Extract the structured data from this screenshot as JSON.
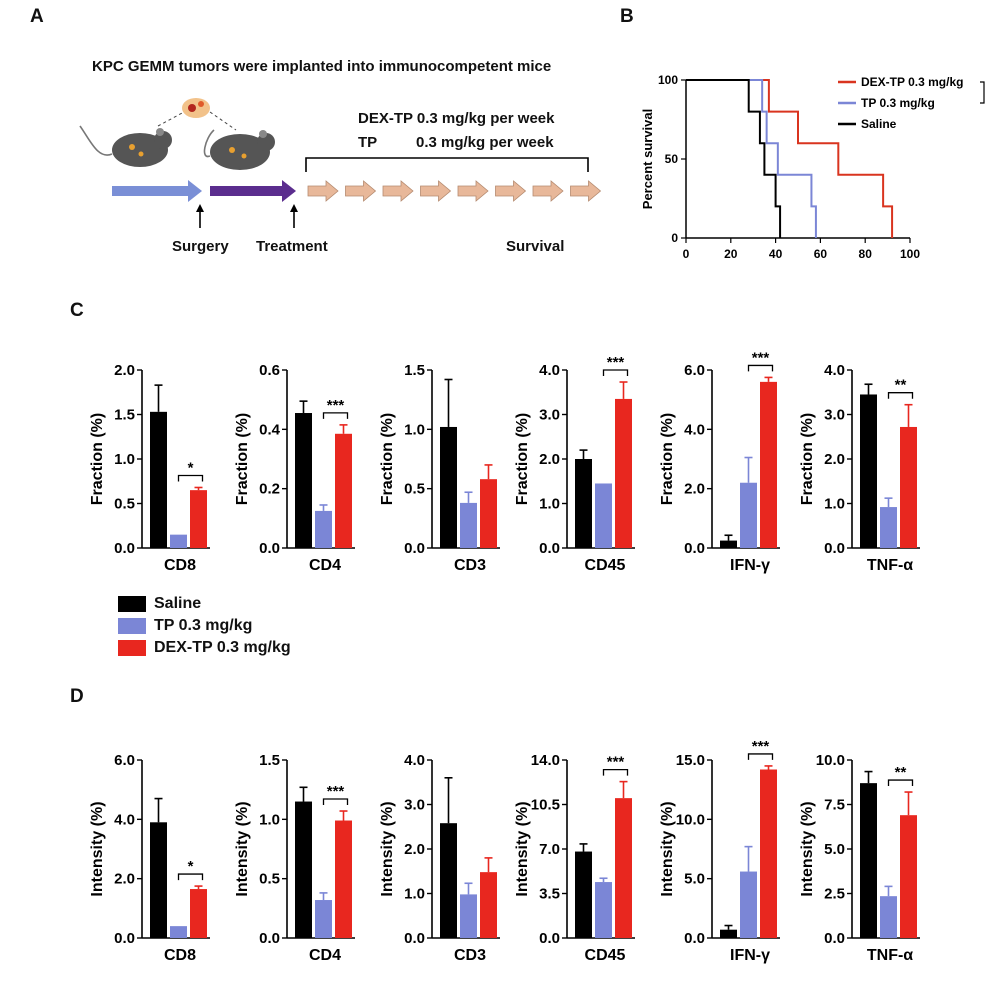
{
  "panels": {
    "a": "A",
    "b": "B",
    "c": "C",
    "d": "D"
  },
  "schematic": {
    "title": "KPC GEMM tumors were implanted into immunocompetent mice",
    "dex_line": "DEX-TP 0.3 mg/kg per week",
    "tp_name": "TP",
    "tp_dose": "0.3 mg/kg per week",
    "surgery": "Surgery",
    "treatment": "Treatment",
    "survival": "Survival"
  },
  "colors": {
    "saline": "#000000",
    "tp": "#7b86d6",
    "dex": "#e8271f",
    "arrow_blue": "#7a8fd6",
    "arrow_purple": "#5b2d8e",
    "arrow_tan": "#e8b89a"
  },
  "legend": {
    "saline": "Saline",
    "tp": "TP 0.3 mg/kg",
    "dex": "DEX-TP 0.3 mg/kg"
  },
  "chart_data": [
    {
      "id": "survival",
      "type": "line",
      "step": true,
      "ylabel": "Percent survival",
      "xlim": [
        0,
        100
      ],
      "ylim": [
        0,
        100
      ],
      "xticks": [
        "0",
        "20",
        "40",
        "60",
        "80",
        "100"
      ],
      "yticks": [
        "0",
        "50",
        "100"
      ],
      "legend_position": "top-right",
      "series": [
        {
          "name": "DEX-TP 0.3 mg/kg",
          "color": "#d9341f",
          "points": [
            [
              0,
              100
            ],
            [
              37,
              100
            ],
            [
              37,
              80
            ],
            [
              50,
              80
            ],
            [
              50,
              60
            ],
            [
              60,
              60
            ],
            [
              60,
              60
            ],
            [
              68,
              60
            ],
            [
              68,
              40
            ],
            [
              80,
              40
            ],
            [
              80,
              40
            ],
            [
              88,
              40
            ],
            [
              88,
              20
            ],
            [
              92,
              20
            ],
            [
              92,
              0
            ]
          ]
        },
        {
          "name": "TP 0.3 mg/kg",
          "color": "#7b86d6",
          "points": [
            [
              0,
              100
            ],
            [
              34,
              100
            ],
            [
              34,
              80
            ],
            [
              36,
              80
            ],
            [
              36,
              60
            ],
            [
              41,
              60
            ],
            [
              41,
              40
            ],
            [
              52,
              40
            ],
            [
              52,
              40
            ],
            [
              56,
              40
            ],
            [
              56,
              20
            ],
            [
              58,
              20
            ],
            [
              58,
              0
            ]
          ]
        },
        {
          "name": "Saline",
          "color": "#000000",
          "points": [
            [
              0,
              100
            ],
            [
              28,
              100
            ],
            [
              28,
              80
            ],
            [
              33,
              80
            ],
            [
              33,
              60
            ],
            [
              35,
              60
            ],
            [
              35,
              40
            ],
            [
              40,
              40
            ],
            [
              40,
              20
            ],
            [
              42,
              20
            ],
            [
              42,
              0
            ]
          ]
        }
      ]
    },
    {
      "id": "c-cd8",
      "type": "bar",
      "ylabel": "Fraction (%)",
      "category": "CD8",
      "ylim": [
        0,
        2.0
      ],
      "yticks": [
        "0.0",
        "0.5",
        "1.0",
        "1.5",
        "2.0"
      ],
      "values": [
        1.53,
        0.15,
        0.65
      ],
      "errors": [
        0.3,
        0,
        0.03
      ],
      "sig": "*"
    },
    {
      "id": "c-cd4",
      "type": "bar",
      "ylabel": "Fraction (%)",
      "category": "CD4",
      "ylim": [
        0,
        0.6
      ],
      "yticks": [
        "0.0",
        "0.2",
        "0.4",
        "0.6"
      ],
      "values": [
        0.455,
        0.125,
        0.385
      ],
      "errors": [
        0.04,
        0.02,
        0.03
      ],
      "sig": "***"
    },
    {
      "id": "c-cd3",
      "type": "bar",
      "ylabel": "Fraction (%)",
      "category": "CD3",
      "ylim": [
        0,
        1.5
      ],
      "yticks": [
        "0.0",
        "0.5",
        "1.0",
        "1.5"
      ],
      "values": [
        1.02,
        0.38,
        0.58
      ],
      "errors": [
        0.4,
        0.09,
        0.12
      ],
      "sig": ""
    },
    {
      "id": "c-cd45",
      "type": "bar",
      "ylabel": "Fraction (%)",
      "category": "CD45",
      "ylim": [
        0,
        4.0
      ],
      "yticks": [
        "0.0",
        "1.0",
        "2.0",
        "3.0",
        "4.0"
      ],
      "values": [
        2.0,
        1.45,
        3.35
      ],
      "errors": [
        0.2,
        0,
        0.38
      ],
      "sig": "***"
    },
    {
      "id": "c-ifn",
      "type": "bar",
      "ylabel": "Fraction (%)",
      "category": "IFN-γ",
      "ylim": [
        0,
        6.0
      ],
      "yticks": [
        "0.0",
        "2.0",
        "4.0",
        "6.0"
      ],
      "values": [
        0.25,
        2.2,
        5.6
      ],
      "errors": [
        0.18,
        0.85,
        0.15
      ],
      "sig": "***"
    },
    {
      "id": "c-tnf",
      "type": "bar",
      "ylabel": "Fraction (%)",
      "category": "TNF-α",
      "ylim": [
        0,
        4.0
      ],
      "yticks": [
        "0.0",
        "1.0",
        "2.0",
        "3.0",
        "4.0"
      ],
      "values": [
        3.45,
        0.92,
        2.72
      ],
      "errors": [
        0.23,
        0.2,
        0.5
      ],
      "sig": "**"
    },
    {
      "id": "d-cd8",
      "type": "bar",
      "ylabel": "Intensity (%)",
      "category": "CD8",
      "ylim": [
        0,
        6.0
      ],
      "yticks": [
        "0.0",
        "2.0",
        "4.0",
        "6.0"
      ],
      "values": [
        3.9,
        0.4,
        1.65
      ],
      "errors": [
        0.8,
        0,
        0.1
      ],
      "sig": "*"
    },
    {
      "id": "d-cd4",
      "type": "bar",
      "ylabel": "Intensity (%)",
      "category": "CD4",
      "ylim": [
        0,
        1.5
      ],
      "yticks": [
        "0.0",
        "0.5",
        "1.0",
        "1.5"
      ],
      "values": [
        1.15,
        0.32,
        0.99
      ],
      "errors": [
        0.12,
        0.06,
        0.08
      ],
      "sig": "***"
    },
    {
      "id": "d-cd3",
      "type": "bar",
      "ylabel": "Intensity (%)",
      "category": "CD3",
      "ylim": [
        0,
        4.0
      ],
      "yticks": [
        "0.0",
        "1.0",
        "2.0",
        "3.0",
        "4.0"
      ],
      "values": [
        2.58,
        0.98,
        1.48
      ],
      "errors": [
        1.02,
        0.25,
        0.32
      ],
      "sig": ""
    },
    {
      "id": "d-cd45",
      "type": "bar",
      "ylabel": "Intensity (%)",
      "category": "CD45",
      "ylim": [
        0,
        14.0
      ],
      "yticks": [
        "0.0",
        "3.5",
        "7.0",
        "10.5",
        "14.0"
      ],
      "values": [
        6.8,
        4.4,
        11.0
      ],
      "errors": [
        0.6,
        0.3,
        1.3
      ],
      "sig": "***"
    },
    {
      "id": "d-ifn",
      "type": "bar",
      "ylabel": "Intensity (%)",
      "category": "IFN-γ",
      "ylim": [
        0,
        15.0
      ],
      "yticks": [
        "0.0",
        "5.0",
        "10.0",
        "15.0"
      ],
      "values": [
        0.7,
        5.6,
        14.2
      ],
      "errors": [
        0.35,
        2.1,
        0.3
      ],
      "sig": "***"
    },
    {
      "id": "d-tnf",
      "type": "bar",
      "ylabel": "Intensity (%)",
      "category": "TNF-α",
      "ylim": [
        0,
        10.0
      ],
      "yticks": [
        "0.0",
        "2.5",
        "5.0",
        "7.5",
        "10.0"
      ],
      "values": [
        8.7,
        2.35,
        6.9
      ],
      "errors": [
        0.65,
        0.55,
        1.3
      ],
      "sig": "**"
    }
  ]
}
